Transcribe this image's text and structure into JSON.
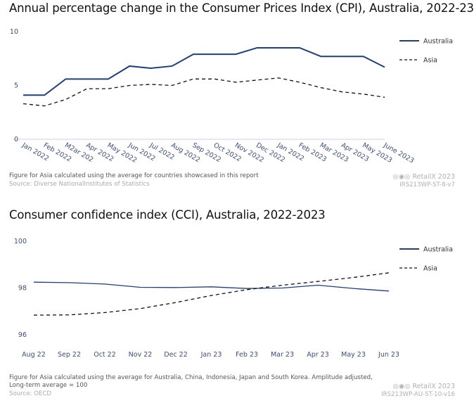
{
  "colors": {
    "australia": "#1f3f7f",
    "asia": "#111111",
    "axis": "#e3e8f4",
    "tick": "#3c4d7a"
  },
  "chart1": {
    "title": "Annual percentage change in the Consumer Prices Index (CPI), Australia, 2022-23",
    "note": "Figure for Asia calculated using the average for countries showcased in this report",
    "source": "Source: Diverse NationalInstitutes of Statistics",
    "credit": "RetailX 2023",
    "code": "IRS213WP-ST-8-v7"
  },
  "chart2": {
    "title": "Consumer confidence index (CCI), Australia, 2022-2023",
    "note": "Figure for Asia calculated using the average for Australia, China, Indonesia, Japan and South Korea. Amplitude adjusted, Long-term average = 100",
    "source": "Source: OECD",
    "credit": "RetailX 2023",
    "code": "IRS213WP-AU-ST-10-v16"
  },
  "chart_data": [
    {
      "type": "line",
      "title": "Annual percentage change in the Consumer Prices Index (CPI), Australia, 2022-23",
      "categories": [
        "Jan 2022",
        "Feb 2022",
        "M2ar 202",
        "Apr 2022",
        "May 2022",
        "Jun 2022",
        "Jul 2022",
        "Aug 2022",
        "Sep 2022",
        "Oct 2022",
        "Nov 2022",
        "Dec 2022",
        "Jan 2022",
        "Feb 2023",
        "Mar 2023",
        "Apr 2023",
        "May 2023",
        "June 2023"
      ],
      "yticks": [
        0,
        5,
        10
      ],
      "ylim": [
        0,
        10
      ],
      "grid": false,
      "legend": "top-right",
      "series": [
        {
          "name": "Australia",
          "style": "solid",
          "values": [
            4.1,
            4.1,
            5.6,
            5.6,
            5.6,
            6.8,
            6.6,
            6.8,
            7.9,
            7.9,
            7.9,
            8.5,
            8.5,
            8.5,
            7.7,
            7.7,
            7.7,
            6.7
          ]
        },
        {
          "name": "Asia",
          "style": "dashed",
          "values": [
            3.3,
            3.1,
            3.7,
            4.7,
            4.7,
            5.0,
            5.1,
            5.0,
            5.6,
            5.6,
            5.3,
            5.5,
            5.7,
            5.3,
            4.8,
            4.4,
            4.2,
            3.9
          ]
        }
      ]
    },
    {
      "type": "line",
      "title": "Consumer confidence index (CCI), Australia, 2022-2023",
      "categories": [
        "Aug 22",
        "Sep 22",
        "Oct 22",
        "Nov 22",
        "Dec 22",
        "Jan 23",
        "Feb 23",
        "Mar 23",
        "Apr 23",
        "May 23",
        "Jun 23"
      ],
      "yticks": [
        96,
        98,
        100
      ],
      "ylim": [
        96,
        100
      ],
      "grid": false,
      "legend": "top-right",
      "series": [
        {
          "name": "Australia",
          "style": "solid",
          "values": [
            98.25,
            98.23,
            98.17,
            98.03,
            98.02,
            98.05,
            97.98,
            98.0,
            98.12,
            97.98,
            97.87
          ]
        },
        {
          "name": "Asia",
          "style": "dashed",
          "values": [
            96.84,
            96.85,
            96.95,
            97.12,
            97.38,
            97.68,
            97.93,
            98.12,
            98.28,
            98.45,
            98.65
          ]
        }
      ]
    }
  ]
}
